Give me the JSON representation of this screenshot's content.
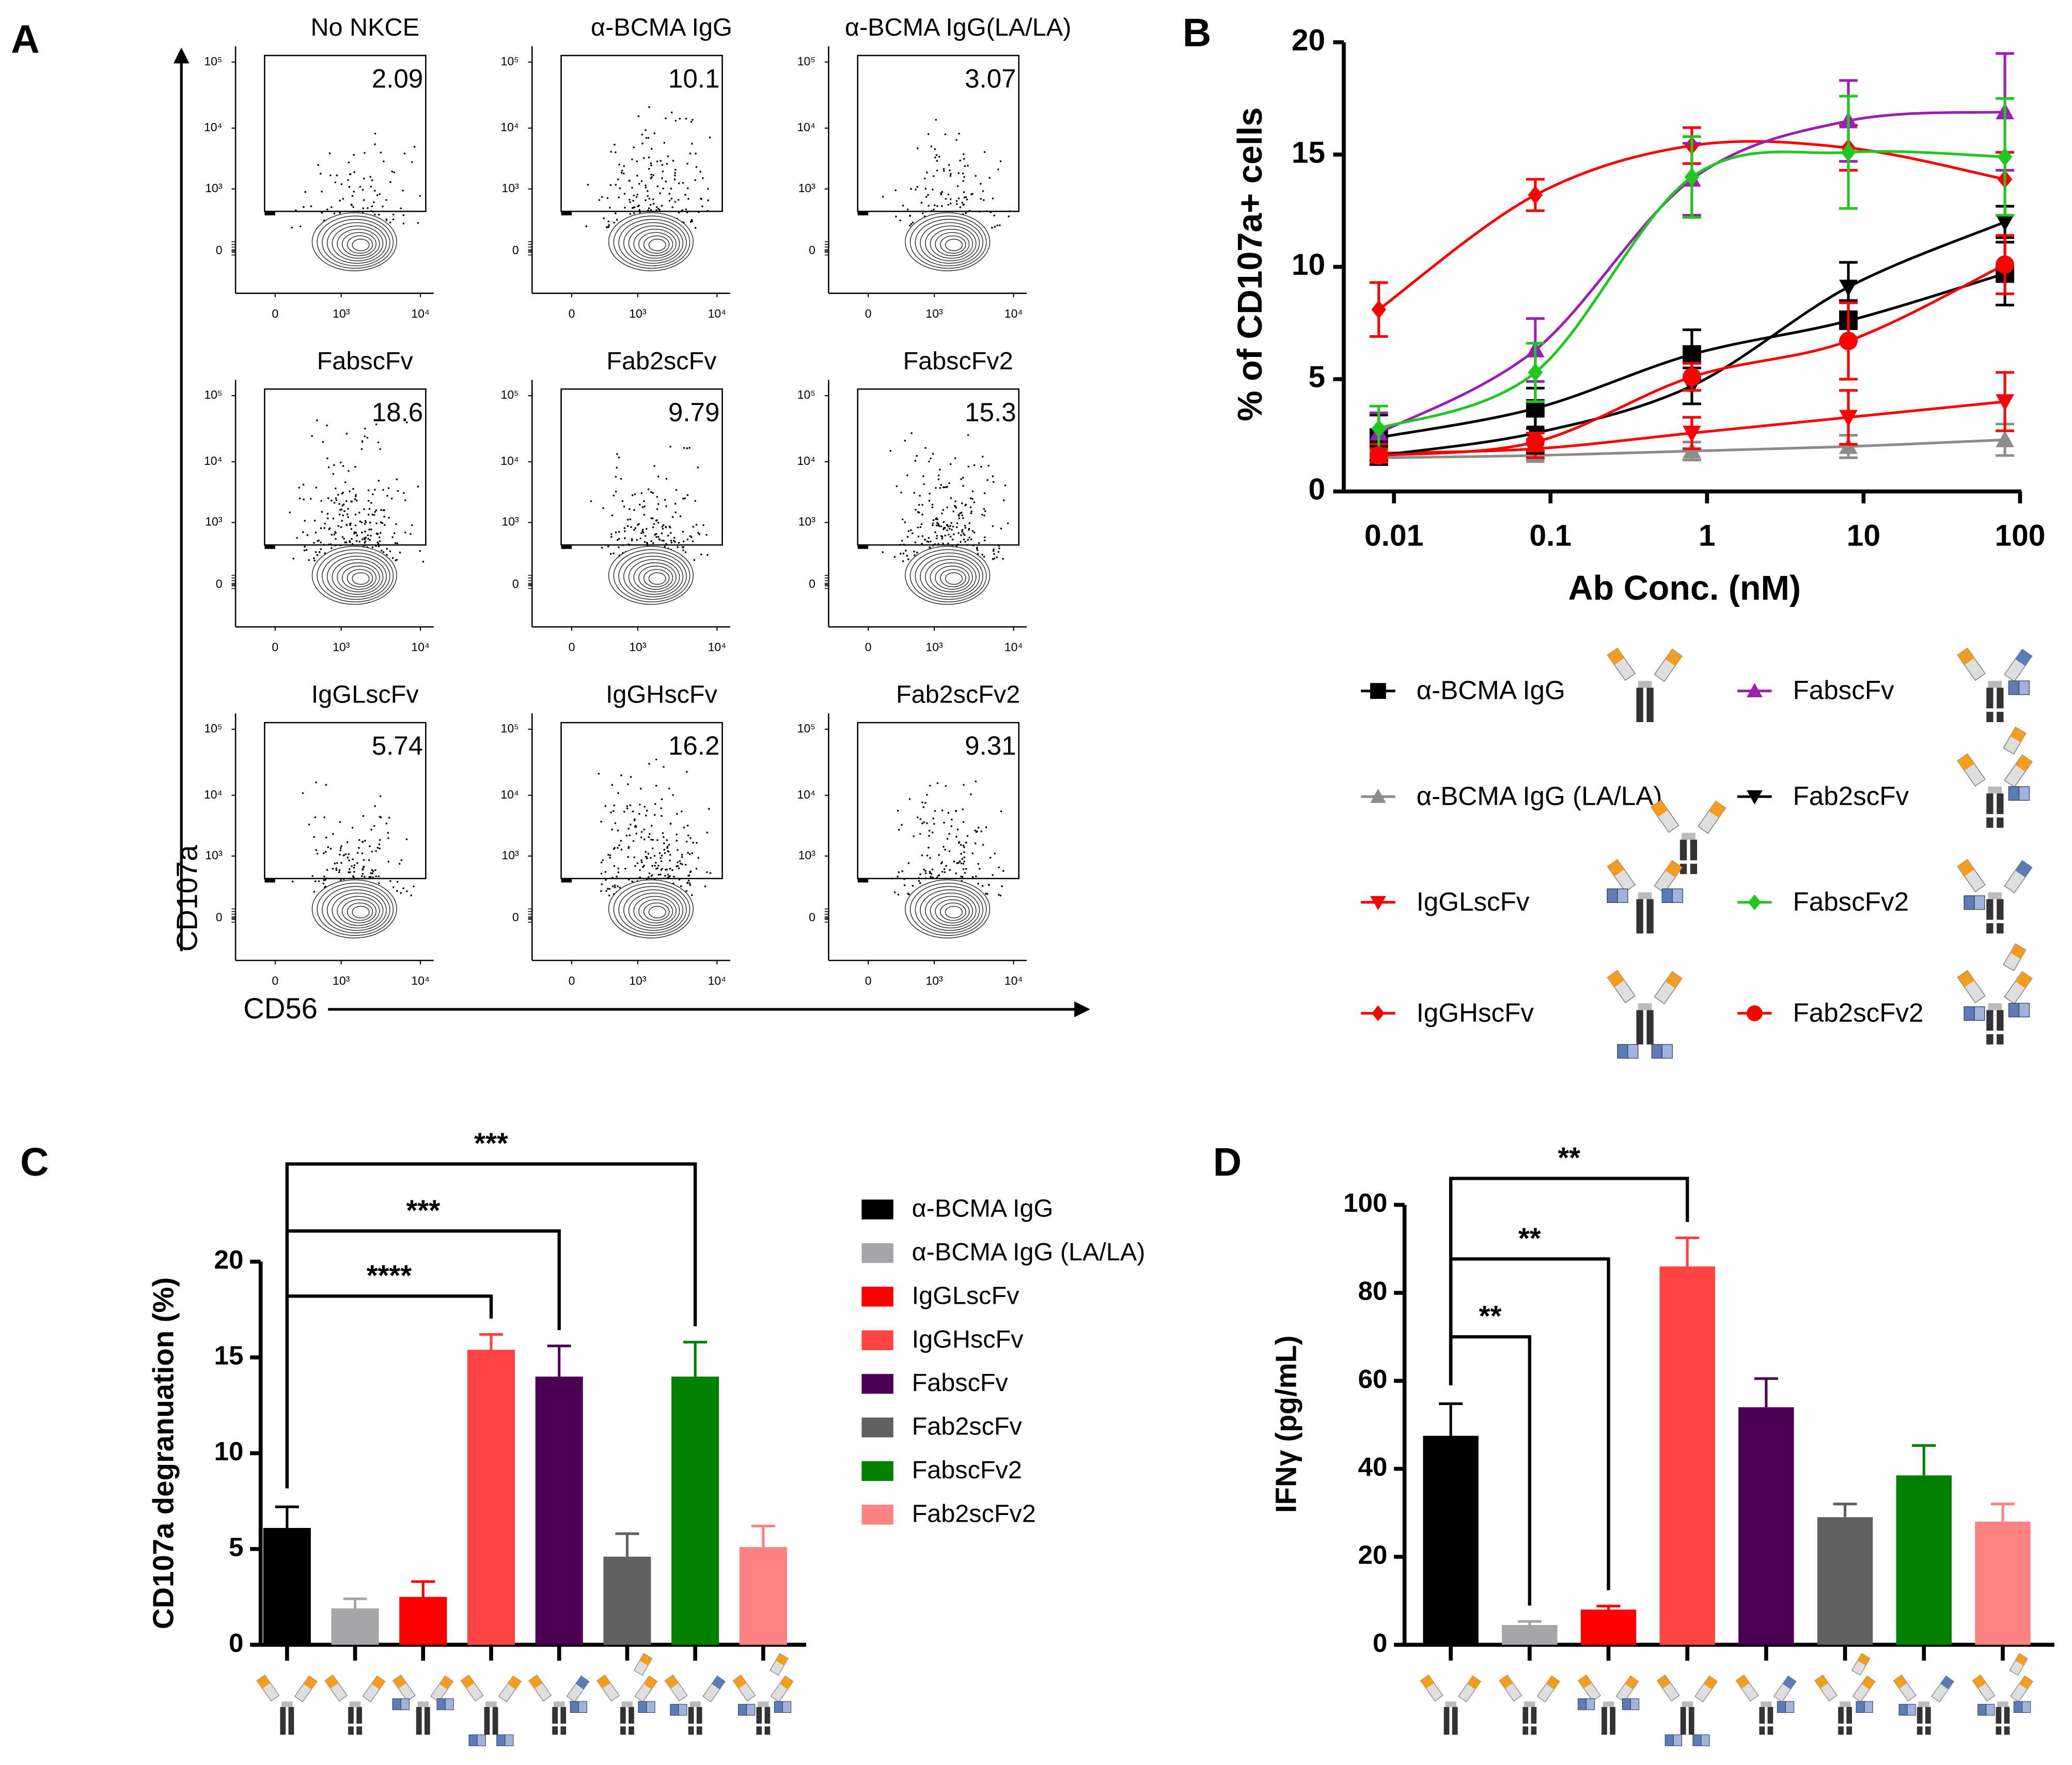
{
  "panel_labels": {
    "a": "A",
    "b": "B",
    "c": "C",
    "d": "D"
  },
  "flow": {
    "y_axis_label": "CD107a",
    "x_axis_label": "CD56",
    "y_ticks": [
      "10⁵",
      "10⁴",
      "10³",
      "0"
    ],
    "x_ticks": [
      "0",
      "10³",
      "10⁴"
    ],
    "plots": [
      {
        "title": "No NKCE",
        "gate_pct": "2.09",
        "events": 0.2
      },
      {
        "title": "α-BCMA IgG",
        "gate_pct": "10.1",
        "events": 0.6
      },
      {
        "title": "α-BCMA IgG(LA/LA)",
        "gate_pct": "3.07",
        "events": 0.35
      },
      {
        "title": "FabscFv",
        "gate_pct": "18.6",
        "events": 0.9
      },
      {
        "title": "Fab2scFv",
        "gate_pct": "9.79",
        "events": 0.55
      },
      {
        "title": "FabscFv2",
        "gate_pct": "15.3",
        "events": 0.8
      },
      {
        "title": "IgGLscFv",
        "gate_pct": "5.74",
        "events": 0.45
      },
      {
        "title": "IgGHscFv",
        "gate_pct": "16.2",
        "events": 0.85
      },
      {
        "title": "Fab2scFv2",
        "gate_pct": "9.31",
        "events": 0.5
      }
    ]
  },
  "chart_data": [
    {
      "type": "line",
      "panel": "B",
      "xlabel": "Ab Conc. (nM)",
      "ylabel": "% of CD107a+ cells",
      "xscale": "log",
      "xlim": [
        0.006,
        100
      ],
      "ylim": [
        0,
        20
      ],
      "x_ticks": [
        "0.01",
        "0.1",
        "1",
        "10",
        "100"
      ],
      "y_ticks": [
        "0",
        "5",
        "10",
        "15",
        "20"
      ],
      "x": [
        0.008,
        0.08,
        0.8,
        8,
        80
      ],
      "series": [
        {
          "name": "α-BCMA IgG",
          "color": "#000000",
          "marker": "square",
          "ab": "igg",
          "values": [
            2.4,
            3.7,
            6.1,
            7.6,
            9.7
          ],
          "err": [
            1.0,
            0.9,
            1.1,
            0.9,
            1.4
          ]
        },
        {
          "name": "α-BCMA IgG (LA/LA)",
          "color": "#8c8c8c",
          "marker": "triangle",
          "ab": "lala",
          "values": [
            1.5,
            1.6,
            1.8,
            2.0,
            2.3
          ],
          "err": [
            0.3,
            0.2,
            0.4,
            0.5,
            0.7
          ]
        },
        {
          "name": "IgGLscFv",
          "color": "#ff0000",
          "marker": "triangle-down",
          "ab": "iggl",
          "values": [
            1.7,
            1.9,
            2.6,
            3.3,
            4.0
          ],
          "err": [
            0.4,
            0.4,
            0.7,
            1.2,
            1.3
          ]
        },
        {
          "name": "IgGHscFv",
          "color": "#ff0000",
          "marker": "diamond",
          "ab": "iggh",
          "values": [
            8.1,
            13.2,
            15.4,
            15.3,
            13.9
          ],
          "err": [
            1.2,
            0.7,
            0.8,
            1.0,
            1.2
          ]
        },
        {
          "name": "FabscFv",
          "color": "#9b1fb5",
          "marker": "triangle",
          "ab": "fabscfv",
          "values": [
            2.6,
            6.3,
            13.9,
            16.5,
            16.9
          ],
          "err": [
            0.9,
            1.4,
            1.6,
            1.8,
            2.6
          ]
        },
        {
          "name": "Fab2scFv",
          "color": "#000000",
          "marker": "triangle-down",
          "ab": "fab2scfv",
          "values": [
            1.6,
            2.6,
            4.7,
            9.1,
            12.0
          ],
          "err": [
            0.4,
            0.9,
            0.8,
            1.1,
            0.7
          ]
        },
        {
          "name": "FabscFv2",
          "color": "#1ec81e",
          "marker": "diamond",
          "ab": "fabscfv2",
          "values": [
            2.8,
            5.3,
            14.0,
            15.1,
            14.9
          ],
          "err": [
            1.0,
            1.3,
            1.8,
            2.5,
            2.6
          ]
        },
        {
          "name": "Fab2scFv2",
          "color": "#ff0000",
          "marker": "circle",
          "ab": "fab2scfv2",
          "values": [
            1.6,
            2.2,
            5.1,
            6.7,
            10.1
          ],
          "err": [
            0.3,
            0.4,
            0.6,
            1.7,
            1.3
          ]
        }
      ]
    },
    {
      "type": "bar",
      "panel": "C",
      "ylabel": "CD107a degranuation (%)",
      "ylim": [
        0,
        20
      ],
      "y_ticks": [
        "0",
        "5",
        "10",
        "15",
        "20"
      ],
      "categories": [
        "α-BCMA IgG",
        "α-BCMA IgG (LA/LA)",
        "IgGLscFv",
        "IgGHscFv",
        "FabscFv",
        "Fab2scFv",
        "FabscFv2",
        "Fab2scFv2"
      ],
      "colors": [
        "#000000",
        "#a6a6a8",
        "#ff0000",
        "#ff4242",
        "#4b0055",
        "#606060",
        "#008000",
        "#ff8282"
      ],
      "ab": [
        "igg",
        "lala",
        "iggl",
        "iggh",
        "fabscfv",
        "fab2scfv",
        "fabscfv2",
        "fab2scfv2"
      ],
      "values": [
        6.1,
        1.9,
        2.5,
        15.4,
        14.0,
        4.6,
        14.0,
        5.1
      ],
      "err": [
        1.1,
        0.5,
        0.8,
        0.8,
        1.6,
        1.2,
        1.8,
        1.1
      ],
      "significance": [
        {
          "from": 0,
          "to": 3,
          "label": "****",
          "level": 18.2
        },
        {
          "from": 0,
          "to": 4,
          "label": "***",
          "level": 21.6
        },
        {
          "from": 0,
          "to": 6,
          "label": "***",
          "level": 25.1
        }
      ]
    },
    {
      "type": "bar",
      "panel": "D",
      "ylabel": "IFNγ (pg/mL)",
      "ylim": [
        0,
        100
      ],
      "y_ticks": [
        "0",
        "20",
        "40",
        "60",
        "80",
        "100"
      ],
      "categories": [
        "α-BCMA IgG",
        "α-BCMA IgG (LA/LA)",
        "IgGLscFv",
        "IgGHscFv",
        "FabscFv",
        "Fab2scFv",
        "FabscFv2",
        "Fab2scFv2"
      ],
      "colors": [
        "#000000",
        "#a6a6a8",
        "#ff0000",
        "#ff4242",
        "#4b0055",
        "#606060",
        "#008000",
        "#ff8282"
      ],
      "ab": [
        "igg",
        "lala",
        "iggl",
        "iggh",
        "fabscfv",
        "fab2scfv",
        "fabscfv2",
        "fab2scfv2"
      ],
      "values": [
        47.5,
        4.5,
        8.0,
        86.0,
        54.0,
        29.0,
        38.5,
        28.0
      ],
      "err": [
        7.3,
        0.8,
        0.8,
        6.5,
        6.5,
        3.0,
        6.8,
        4.0
      ],
      "significance": [
        {
          "from": 0,
          "to": 1,
          "label": "**",
          "level": 70.0
        },
        {
          "from": 0,
          "to": 2,
          "label": "**",
          "level": 87.7
        },
        {
          "from": 0,
          "to": 3,
          "label": "**",
          "level": 106.0
        }
      ]
    }
  ]
}
